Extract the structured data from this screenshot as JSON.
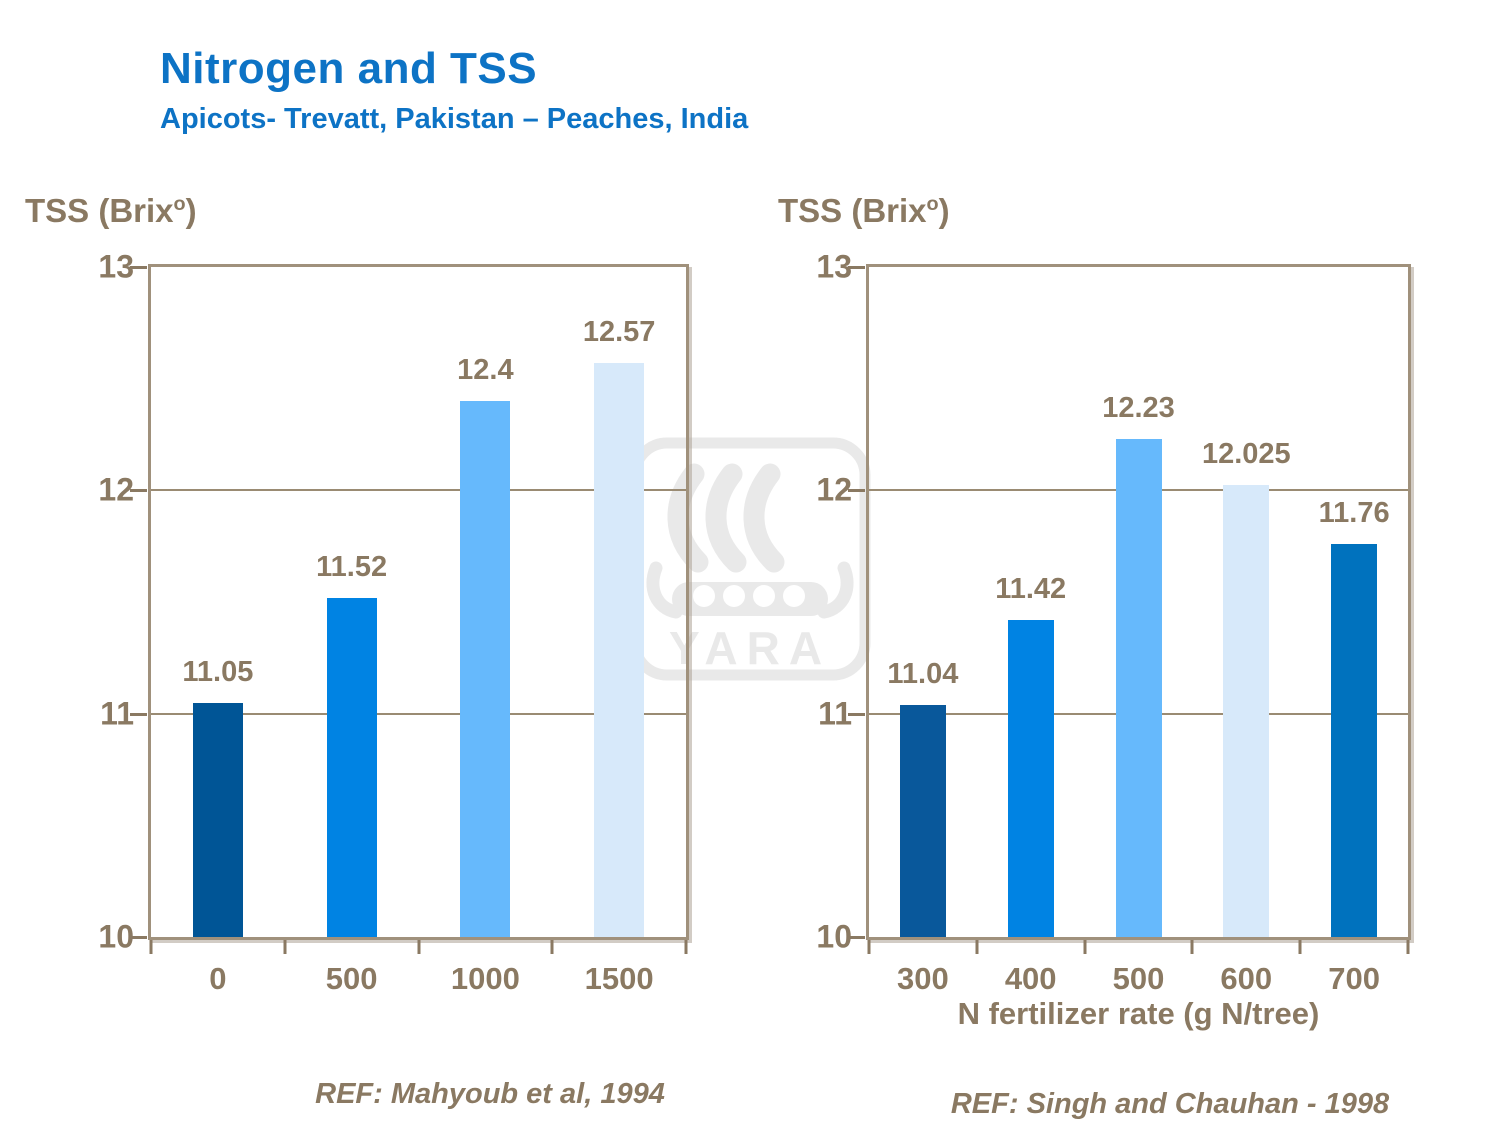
{
  "slide": {
    "title": "Nitrogen and TSS",
    "subtitle": "Apicots- Trevatt, Pakistan – Peaches, India"
  },
  "colors": {
    "title_blue": "#0D73C5",
    "text_brown": "#8A7962",
    "frame_border": "#A0917C",
    "gridline": "#9A8B73",
    "watermark_gray": "#E9E9E9"
  },
  "axis_title": {
    "prefix": "TSS (Brix",
    "sup": "o",
    "suffix": ")"
  },
  "watermark": {
    "text": "YARA"
  },
  "refs": {
    "left": "REF: Mahyoub et al, 1994",
    "right": "REF: Singh and Chauhan - 1998"
  },
  "chart_data": [
    {
      "type": "bar",
      "categories": [
        "0",
        "500",
        "1000",
        "1500"
      ],
      "values": [
        11.05,
        11.52,
        12.4,
        12.57
      ],
      "value_labels": [
        "11.05",
        "11.52",
        "12.4",
        "12.57"
      ],
      "bar_colors": [
        "#005596",
        "#0083E3",
        "#66B9FC",
        "#D7E9FA"
      ],
      "ylabel": "TSS (Brix°)",
      "xlabel": "",
      "ylim": [
        10,
        13
      ],
      "yticks": [
        13,
        12,
        11,
        10
      ],
      "grid": "horizontal gridlines at 11 and 12",
      "legend": "none"
    },
    {
      "type": "bar",
      "categories": [
        "300",
        "400",
        "500",
        "600",
        "700"
      ],
      "values": [
        11.04,
        11.42,
        12.23,
        12.025,
        11.76
      ],
      "value_labels": [
        "11.04",
        "11.42",
        "12.23",
        "12.025",
        "11.76"
      ],
      "bar_colors": [
        "#09589B",
        "#0083E3",
        "#66B9FC",
        "#D7E9FA",
        "#0072BE"
      ],
      "ylabel": "TSS (Brix°)",
      "xlabel": "N fertilizer rate (g N/tree)",
      "ylim": [
        10,
        13
      ],
      "yticks": [
        13,
        12,
        11,
        10
      ],
      "grid": "horizontal gridlines at 11 and 12",
      "legend": "none"
    }
  ]
}
